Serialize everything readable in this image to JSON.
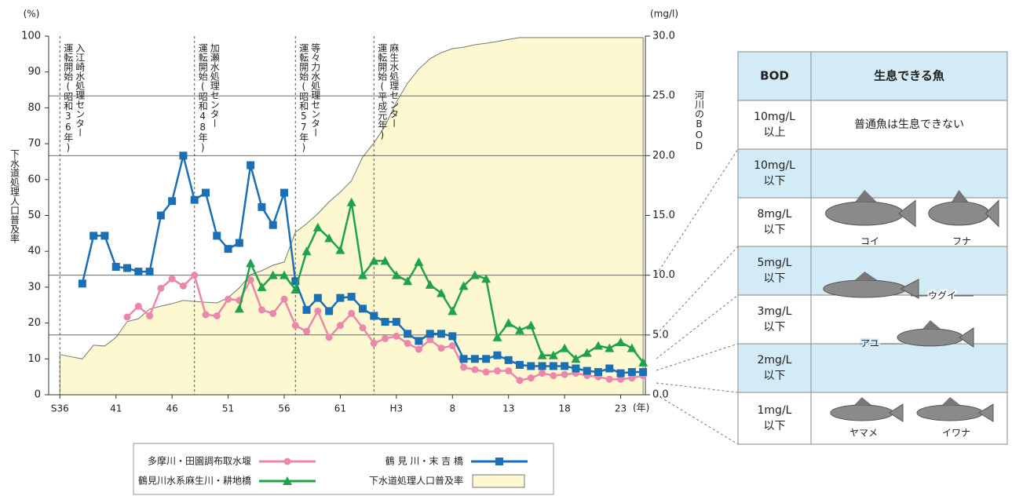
{
  "chart_data": {
    "type": "line",
    "y_unit": "(%)",
    "y2_unit": "(mg/l)",
    "x_unit": "(年)",
    "ylabel": "下水道処理人口普及率",
    "y2label": "河川のBOD",
    "xlim": [
      1960,
      2013.2
    ],
    "ylim": [
      0,
      100
    ],
    "y2lim": [
      0,
      30
    ],
    "yticks": [
      0,
      10,
      20,
      30,
      40,
      50,
      60,
      70,
      80,
      90,
      100
    ],
    "y2ticks": [
      {
        "value": 0,
        "label": "0.0"
      },
      {
        "value": 5,
        "label": "5.0"
      },
      {
        "value": 10,
        "label": "10.0"
      },
      {
        "value": 15,
        "label": "15.0"
      },
      {
        "value": 20,
        "label": "20.0"
      },
      {
        "value": 25,
        "label": "25.0"
      },
      {
        "value": 30,
        "label": "30.0"
      }
    ],
    "y2grid": [
      5,
      10,
      20,
      25
    ],
    "xticks": [
      {
        "value": 1961,
        "label": "S36"
      },
      {
        "value": 1966,
        "label": "41"
      },
      {
        "value": 1971,
        "label": "46"
      },
      {
        "value": 1976,
        "label": "51"
      },
      {
        "value": 1981,
        "label": "56"
      },
      {
        "value": 1986,
        "label": "61"
      },
      {
        "value": 1991,
        "label": "H3"
      },
      {
        "value": 1996,
        "label": "8"
      },
      {
        "value": 2001,
        "label": "13"
      },
      {
        "value": 2006,
        "label": "18"
      },
      {
        "value": 2011,
        "label": "23"
      }
    ],
    "annotations": [
      {
        "x": 1961,
        "color": "#222222",
        "lines": [
          "入江崎水処理センター",
          "運転開始(昭和36年)"
        ]
      },
      {
        "x": 1973,
        "color": "#1b6aa5",
        "lines": [
          "加瀬水処理センター",
          "運転開始(昭和48年)"
        ]
      },
      {
        "x": 1982,
        "color": "#e87fa6",
        "lines": [
          "等々力水処理センター",
          "運転開始(昭和57年)"
        ]
      },
      {
        "x": 1989,
        "color": "#1fa24a",
        "lines": [
          "麻生水処理センター",
          "運転開始(平成元年)"
        ]
      }
    ],
    "series": [
      {
        "name": "多摩川・田園調布取水堰",
        "color": "#eb86ac",
        "marker": "circle",
        "axis": "y2",
        "x": [
          1967,
          1968,
          1969,
          1970,
          1971,
          1972,
          1973,
          1974,
          1975,
          1976,
          1977,
          1978,
          1979,
          1980,
          1981,
          1982,
          1983,
          1984,
          1985,
          1986,
          1987,
          1988,
          1989,
          1990,
          1991,
          1992,
          1993,
          1994,
          1995,
          1996,
          1997,
          1998,
          1999,
          2000,
          2001,
          2002,
          2003,
          2004,
          2005,
          2006,
          2007,
          2008,
          2009,
          2010,
          2011,
          2012,
          2013
        ],
        "values": [
          6.5,
          7.4,
          6.6,
          8.9,
          9.7,
          9.1,
          10.0,
          6.7,
          6.6,
          8.0,
          7.9,
          9.6,
          7.1,
          6.8,
          8.0,
          5.8,
          5.3,
          7.0,
          4.8,
          5.8,
          6.8,
          5.6,
          4.3,
          4.7,
          4.9,
          4.3,
          3.8,
          4.6,
          3.9,
          4.1,
          2.3,
          2.1,
          1.9,
          2.0,
          2.0,
          1.2,
          1.4,
          1.8,
          1.6,
          1.7,
          1.8,
          1.6,
          1.5,
          1.3,
          1.3,
          1.4,
          1.6
        ]
      },
      {
        "name": "鶴 見 川・末 吉 橋",
        "color": "#1a6fb5",
        "marker": "square",
        "axis": "y2",
        "x": [
          1963,
          1964,
          1965,
          1966,
          1967,
          1968,
          1969,
          1970,
          1971,
          1972,
          1973,
          1974,
          1975,
          1976,
          1977,
          1978,
          1979,
          1980,
          1981,
          1982,
          1983,
          1984,
          1985,
          1986,
          1987,
          1988,
          1989,
          1990,
          1991,
          1992,
          1993,
          1994,
          1995,
          1996,
          1997,
          1998,
          1999,
          2000,
          2001,
          2002,
          2003,
          2004,
          2005,
          2006,
          2007,
          2008,
          2009,
          2010,
          2011,
          2012,
          2013
        ],
        "values": [
          9.3,
          13.3,
          13.3,
          10.7,
          10.6,
          10.3,
          10.3,
          15.0,
          16.2,
          20.0,
          16.3,
          16.9,
          13.3,
          12.2,
          12.7,
          19.2,
          15.7,
          14.2,
          16.9,
          9.5,
          7.1,
          8.1,
          7.0,
          8.1,
          8.2,
          7.2,
          6.6,
          6.1,
          6.1,
          5.1,
          4.5,
          5.1,
          5.1,
          4.9,
          3.0,
          3.0,
          3.0,
          3.3,
          2.9,
          2.5,
          2.4,
          2.4,
          2.4,
          2.4,
          2.2,
          2.0,
          1.9,
          2.2,
          1.8,
          1.9,
          1.9
        ]
      },
      {
        "name": "鶴見川水系麻生川・耕地橋",
        "color": "#1fa24a",
        "marker": "triangle",
        "axis": "y2",
        "x": [
          1977,
          1978,
          1979,
          1980,
          1981,
          1982,
          1983,
          1984,
          1985,
          1986,
          1987,
          1988,
          1989,
          1990,
          1991,
          1992,
          1993,
          1994,
          1995,
          1996,
          1997,
          1998,
          1999,
          2000,
          2001,
          2002,
          2003,
          2004,
          2005,
          2006,
          2007,
          2008,
          2009,
          2010,
          2011,
          2012,
          2013
        ],
        "values": [
          7.2,
          11.0,
          9.0,
          10.0,
          10.0,
          8.8,
          12.0,
          14.0,
          13.1,
          12.1,
          16.1,
          10.0,
          11.2,
          11.2,
          10.0,
          9.5,
          11.1,
          9.2,
          8.5,
          7.0,
          9.1,
          10.0,
          9.7,
          4.8,
          6.0,
          5.4,
          5.8,
          3.3,
          3.3,
          3.9,
          3.0,
          3.5,
          4.1,
          3.9,
          4.4,
          3.9,
          2.7
        ]
      },
      {
        "name": "下水道処理人口普及率",
        "color": "#fdf8d0",
        "marker": "area",
        "axis": "y",
        "x": [
          1961,
          1962,
          1963,
          1964,
          1965,
          1966,
          1967,
          1968,
          1969,
          1970,
          1971,
          1972,
          1973,
          1974,
          1975,
          1976,
          1977,
          1978,
          1979,
          1980,
          1981,
          1982,
          1983,
          1984,
          1985,
          1986,
          1987,
          1988,
          1989,
          1990,
          1991,
          1992,
          1993,
          1994,
          1995,
          1996,
          1997,
          1998,
          1999,
          2000,
          2001,
          2002,
          2003,
          2004,
          2005,
          2006,
          2007,
          2008,
          2009,
          2010,
          2011,
          2012,
          2013
        ],
        "values": [
          11.2,
          10.6,
          10.0,
          13.8,
          13.6,
          16.0,
          20.4,
          21.2,
          23.9,
          24.7,
          25.4,
          26.3,
          26.0,
          25.8,
          25.6,
          27.1,
          29.8,
          33.5,
          34.6,
          36.1,
          37.0,
          45.3,
          47.7,
          50.5,
          53.8,
          56.5,
          59.7,
          66.3,
          70.2,
          75.0,
          81.6,
          86.9,
          90.8,
          93.7,
          95.4,
          96.5,
          96.9,
          97.6,
          98.0,
          98.5,
          99.1,
          99.6,
          99.6,
          99.6,
          99.6,
          99.6,
          99.6,
          99.6,
          99.6,
          99.6,
          99.6,
          99.6,
          99.6
        ]
      }
    ]
  },
  "fish_table": {
    "header": [
      "BOD",
      "生息できる魚"
    ],
    "rows": [
      {
        "bod": [
          "10mg/L",
          "以上"
        ],
        "note": "普通魚は生息できない"
      },
      {
        "bod": [
          "10mg/L",
          "以下"
        ]
      },
      {
        "bod": [
          "8mg/L",
          "以下"
        ],
        "fish": [
          "コイ",
          "フナ"
        ]
      },
      {
        "bod": [
          "5mg/L",
          "以下"
        ]
      },
      {
        "bod": [
          "3mg/L",
          "以下"
        ]
      },
      {
        "bod": [
          "2mg/L",
          "以下"
        ]
      },
      {
        "bod": [
          "1mg/L",
          "以下"
        ],
        "fish": [
          "ヤマメ",
          "イワナ"
        ]
      }
    ],
    "fish_labels": [
      "ウグイ",
      "アユ"
    ]
  }
}
